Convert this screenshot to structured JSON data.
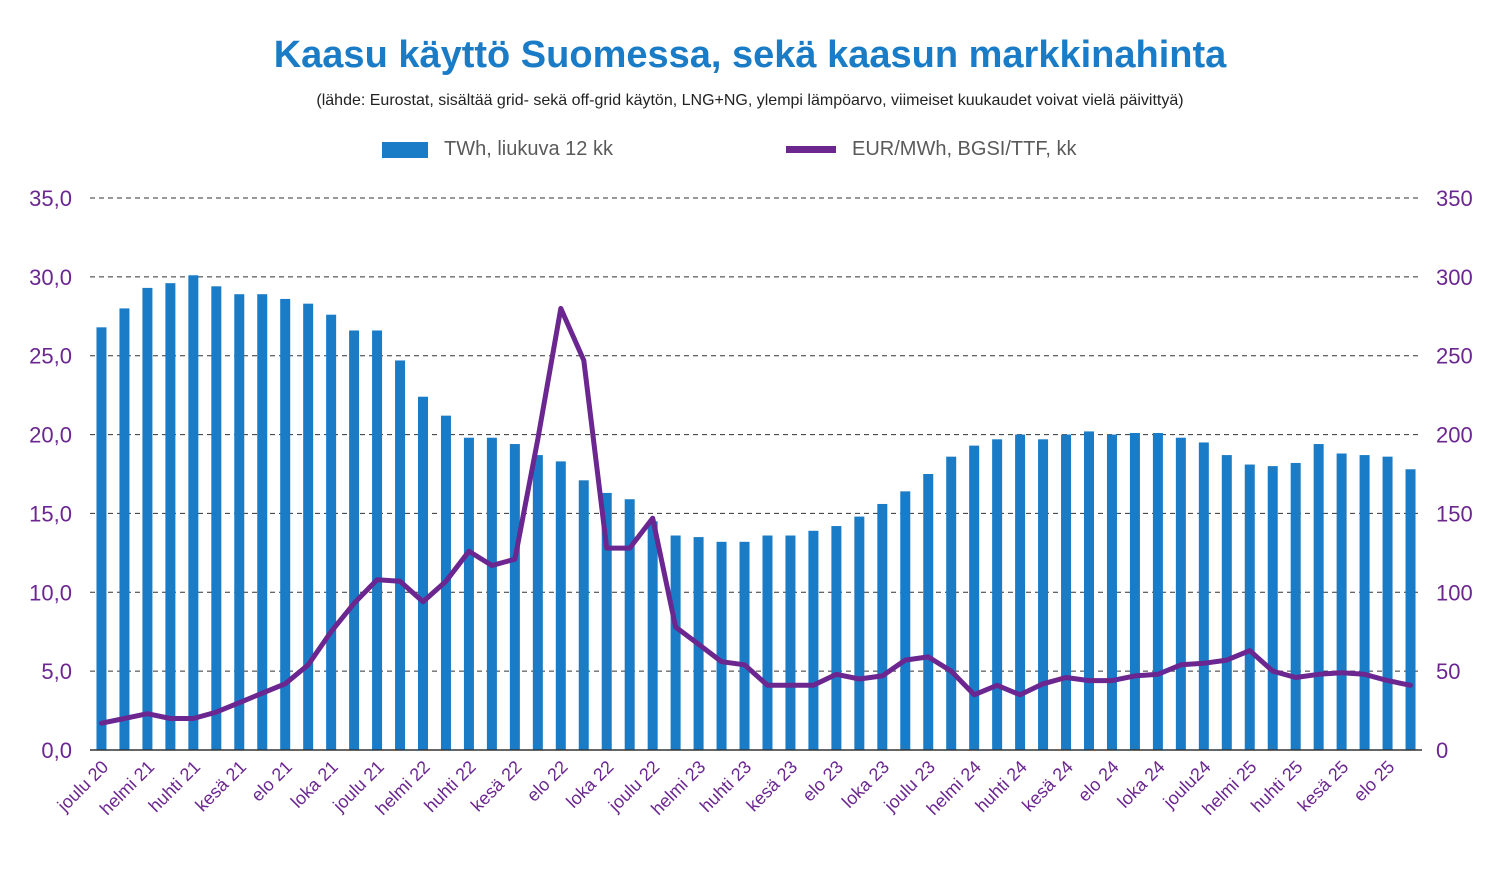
{
  "title": "Kaasu käyttö Suomessa, sekä kaasun markkinahinta",
  "subtitle": "(lähde: Eurostat, sisältää grid- sekä off-grid käytön, LNG+NG, ylempi lämpöarvo, viimeiset kuukaudet voivat vielä päivittyä)",
  "legend": {
    "bar_label": "TWh, liukuva 12 kk",
    "line_label": "EUR/MWh, BGSI/TTF, kk"
  },
  "colors": {
    "bar": "#1a7cc6",
    "line": "#6b2690",
    "axis_text": "#6b2690",
    "title": "#1a7cc6"
  },
  "chart_data": {
    "type": "bar",
    "left_axis": {
      "ylim": [
        0,
        35
      ],
      "ticks": [
        "0,0",
        "5,0",
        "10,0",
        "15,0",
        "20,0",
        "25,0",
        "30,0",
        "35,0"
      ]
    },
    "right_axis": {
      "ylim": [
        0,
        350
      ],
      "ticks": [
        "0",
        "50",
        "100",
        "150",
        "200",
        "250",
        "300",
        "350"
      ]
    },
    "grid": true,
    "legend_position": "top",
    "x_tick_labels": [
      "joulu 20",
      "helmi 21",
      "huhti 21",
      "kesä 21",
      "elo 21",
      "loka 21",
      "joulu 21",
      "helmi 22",
      "huhti 22",
      "kesä 22",
      "elo 22",
      "loka 22",
      "joulu 22",
      "helmi 23",
      "huhti 23",
      "kesä 23",
      "elo 23",
      "loka 23",
      "joulu 23",
      "helmi 24",
      "huhti 24",
      "kesä 24",
      "elo 24",
      "loka 24",
      "joulu24",
      "helmi 25",
      "huhti 25",
      "kesä 25",
      "elo 25"
    ],
    "series": [
      {
        "name": "TWh, liukuva 12 kk",
        "type": "bar",
        "axis": "left",
        "values": [
          26.8,
          28.0,
          29.3,
          29.6,
          30.1,
          29.4,
          28.9,
          28.9,
          28.6,
          28.3,
          27.6,
          26.6,
          26.6,
          24.7,
          22.4,
          21.2,
          19.8,
          19.8,
          19.4,
          18.7,
          18.3,
          17.1,
          16.3,
          15.9,
          14.5,
          13.6,
          13.5,
          13.2,
          13.2,
          13.6,
          13.6,
          13.9,
          14.2,
          14.8,
          15.6,
          16.4,
          17.5,
          18.6,
          19.3,
          19.7,
          20.0,
          19.7,
          20.0,
          20.2,
          20.0,
          20.1,
          20.1,
          19.8,
          19.5,
          18.7,
          18.1,
          18.0,
          18.2,
          19.4,
          18.8,
          18.7,
          18.6,
          17.8
        ]
      },
      {
        "name": "EUR/MWh, BGSI/TTF, kk",
        "type": "line",
        "axis": "right",
        "values": [
          17,
          20,
          23,
          20,
          20,
          24,
          30,
          36,
          42,
          54,
          75,
          93,
          108,
          107,
          94,
          107,
          126,
          117,
          121,
          197,
          280,
          247,
          128,
          128,
          147,
          78,
          67,
          56,
          54,
          41,
          41,
          41,
          48,
          45,
          47,
          57,
          59,
          50,
          35,
          41,
          35,
          42,
          46,
          44,
          44,
          47,
          48,
          54,
          55,
          57,
          63,
          50,
          46,
          48,
          49,
          48,
          44,
          41
        ]
      }
    ]
  }
}
